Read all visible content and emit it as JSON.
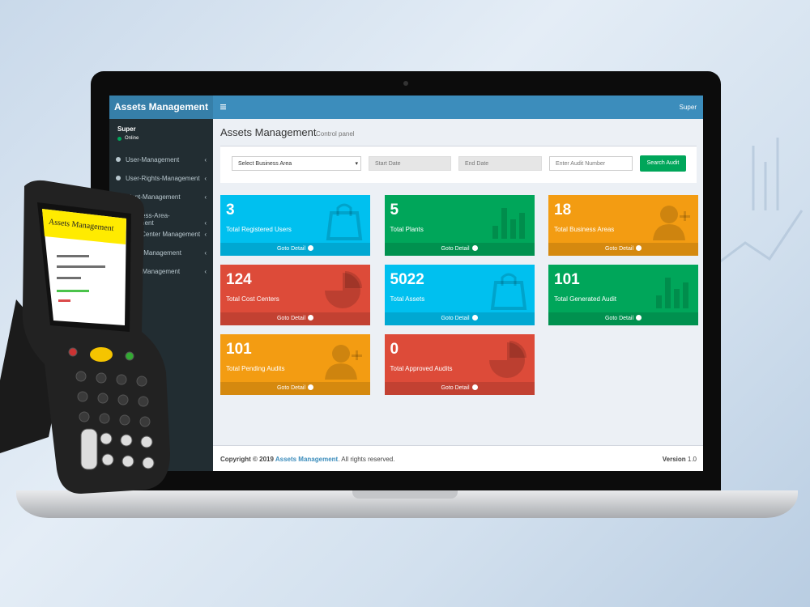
{
  "header": {
    "brand": "Assets Management",
    "user": "Super"
  },
  "sidebar": {
    "user_name": "Super",
    "status": "Online",
    "menu": [
      "User-Management",
      "User-Rights-Management",
      "Plant-Management",
      "Business-Area-Management",
      "Cost-Center Management",
      "Asset Management",
      "Audit Management"
    ]
  },
  "content": {
    "title": "Assets Management",
    "subtitle": "Control panel"
  },
  "filters": {
    "business_area": "Select Business Area",
    "start_date": "Start Date",
    "end_date": "End Date",
    "audit_number": "Enter Audit Number",
    "button": "Search Audit"
  },
  "cards": [
    {
      "value": 3,
      "label": "Total Registered Users",
      "link": "Goto Detail",
      "color": "#00c0ef"
    },
    {
      "value": 5,
      "label": "Total Plants",
      "link": "Goto Detail",
      "color": "#00a65a"
    },
    {
      "value": 18,
      "label": "Total Business Areas",
      "link": "Goto Detail",
      "color": "#f39c12"
    },
    {
      "value": 124,
      "label": "Total Cost Centers",
      "link": "Goto Detail",
      "color": "#dd4b39"
    },
    {
      "value": 5022,
      "label": "Total Assets",
      "link": "Goto Detail",
      "color": "#00c0ef"
    },
    {
      "value": 101,
      "label": "Total Generated Audit",
      "link": "Goto Detail",
      "color": "#00a65a"
    },
    {
      "value": 101,
      "label": "Total Pending Audits",
      "link": "Goto Detail",
      "color": "#f39c12"
    },
    {
      "value": 0,
      "label": "Total Approved Audits",
      "link": "Goto Detail",
      "color": "#dd4b39"
    }
  ],
  "footer": {
    "copyright": "Copyright © 2019 ",
    "company": "Assets Management",
    "rights": ". All rights reserved.",
    "version_label": "Version",
    "version": "1.0"
  },
  "scanner": {
    "title": "Assets Management"
  }
}
